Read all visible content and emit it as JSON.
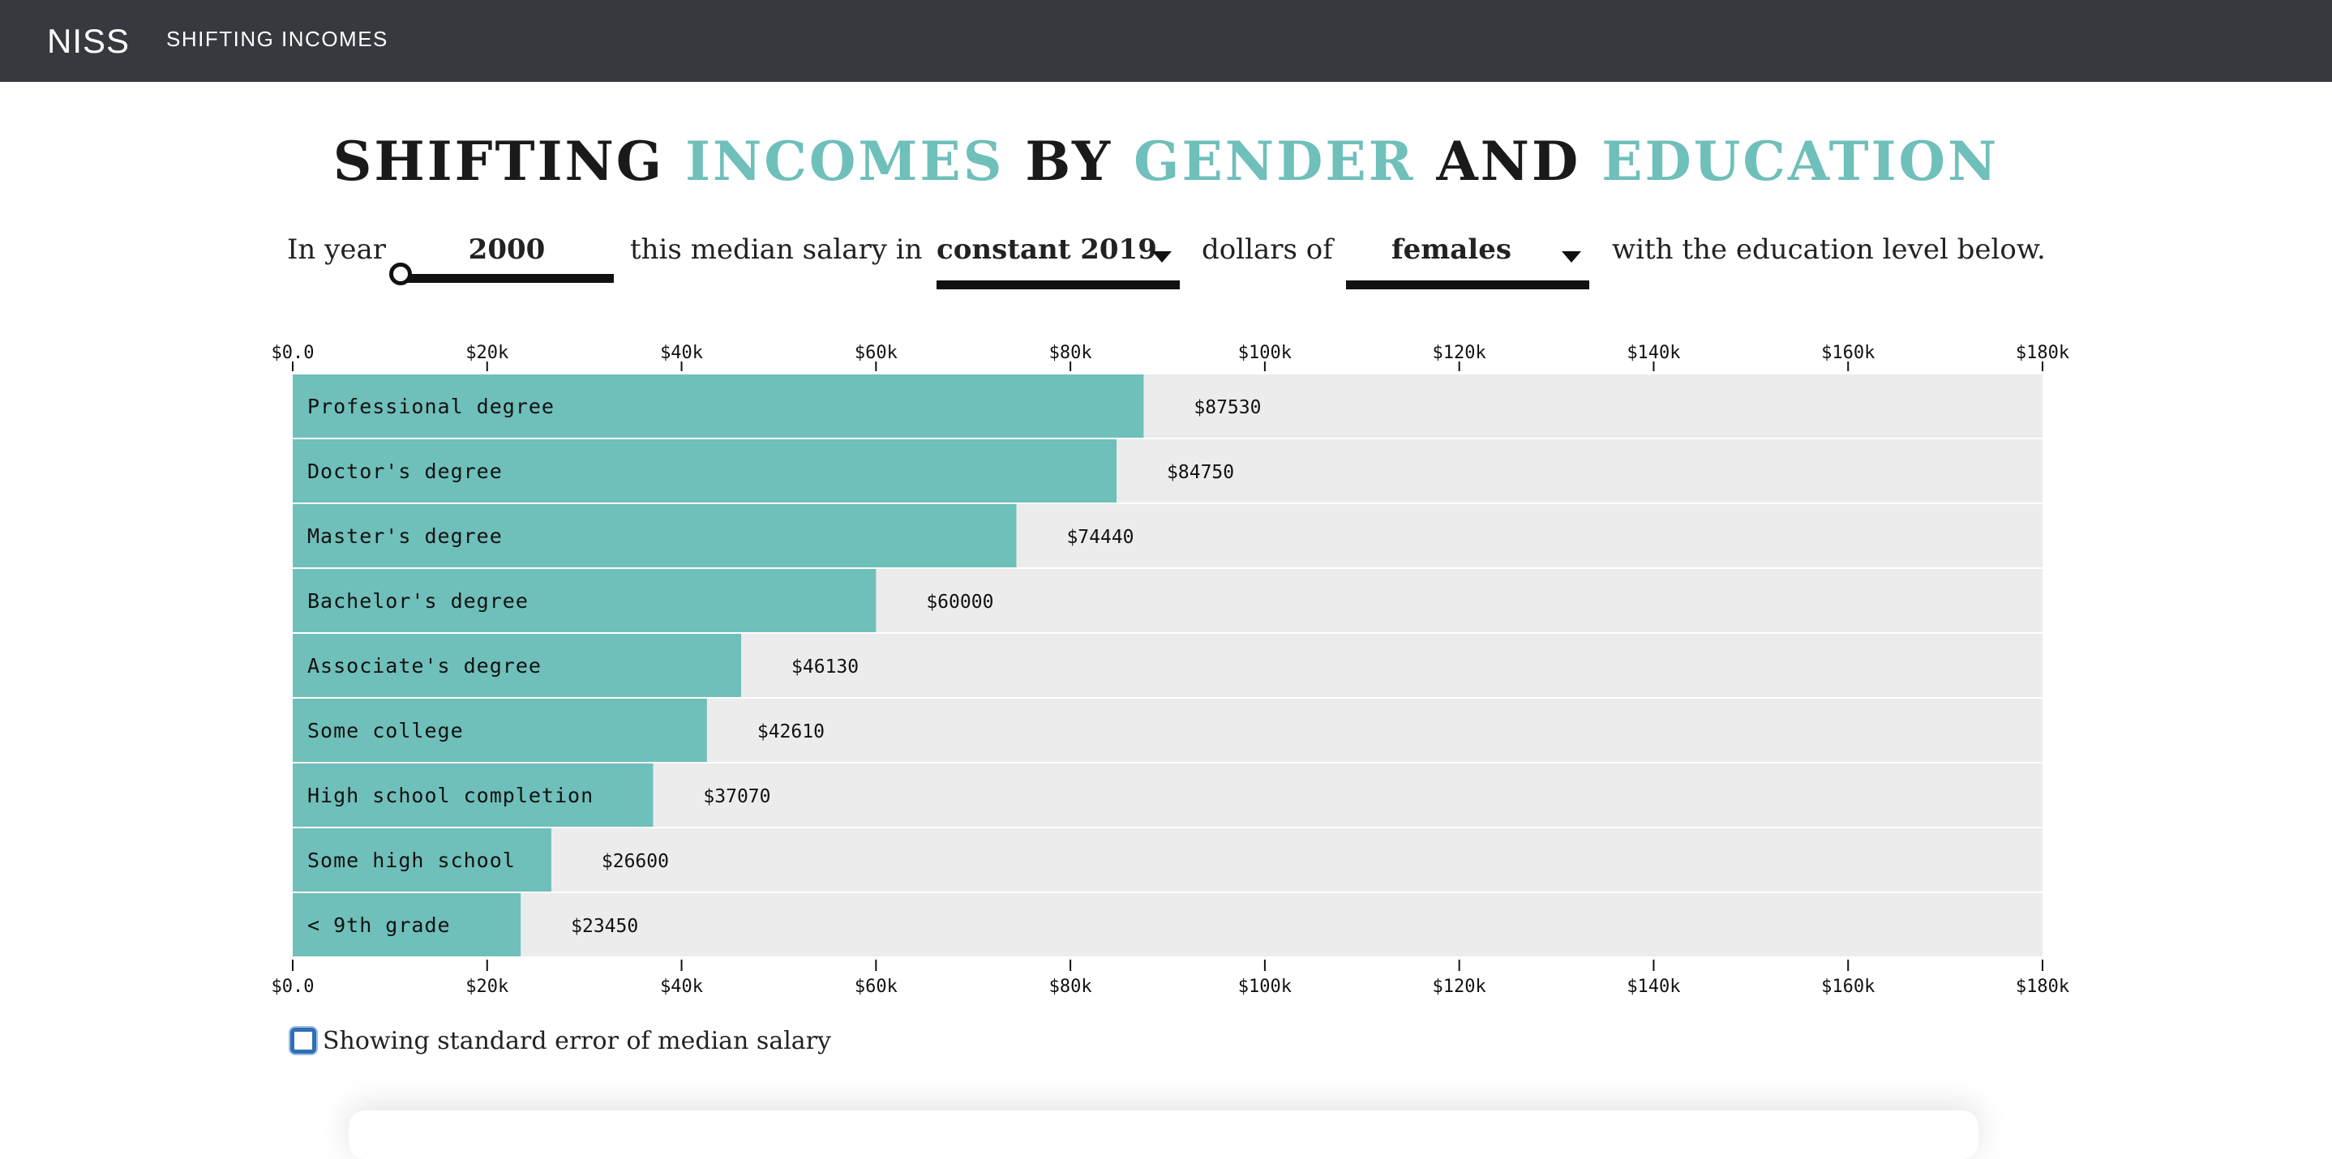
{
  "navbar": {
    "brand": "NISS",
    "link": "SHIFTING INCOMES"
  },
  "title": {
    "parts": [
      {
        "text": "SHIFTING ",
        "accent": false
      },
      {
        "text": "INCOMES",
        "accent": true
      },
      {
        "text": " BY ",
        "accent": false
      },
      {
        "text": "GENDER",
        "accent": true
      },
      {
        "text": " AND ",
        "accent": false
      },
      {
        "text": "EDUCATION",
        "accent": true
      }
    ]
  },
  "controls": {
    "prefix": "In year",
    "year": "2000",
    "year_slider_position": 0.0,
    "middle": "this median salary in",
    "dollar_basis": "constant 2019",
    "middle2": "dollars of",
    "gender": "females",
    "suffix": "with the education level below."
  },
  "colors": {
    "accent": "#6fbfba",
    "bar": "#6fbfba",
    "track": "#ececec",
    "navbar": "#363a3e"
  },
  "chart_data": {
    "type": "bar",
    "orientation": "horizontal",
    "categories": [
      "Professional degree",
      "Doctor's degree",
      "Master's degree",
      "Bachelor's degree",
      "Associate's degree",
      "Some college",
      "High school completion",
      "Some high school",
      "< 9th grade"
    ],
    "values": [
      87530,
      84750,
      74440,
      60000,
      46130,
      42610,
      37070,
      26600,
      23450
    ],
    "value_labels": [
      "$87530",
      "$84750",
      "$74440",
      "$60000",
      "$46130",
      "$42610",
      "$37070",
      "$26600",
      "$23450"
    ],
    "xlim": [
      0,
      180000
    ],
    "ticks": [
      0,
      20000,
      40000,
      60000,
      80000,
      100000,
      120000,
      140000,
      160000,
      180000
    ],
    "tick_labels": [
      "$0.0",
      "$20k",
      "$40k",
      "$60k",
      "$80k",
      "$100k",
      "$120k",
      "$140k",
      "$160k",
      "$180k"
    ],
    "axes": "top and bottom"
  },
  "checkbox": {
    "label": "Showing standard error of median salary",
    "checked": false
  }
}
